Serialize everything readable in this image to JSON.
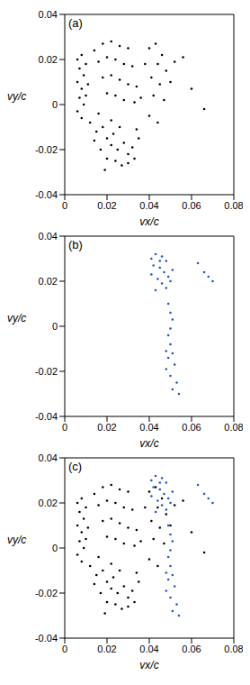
{
  "chart_data": [
    {
      "type": "scatter",
      "title": "(a)",
      "x_label": "vx/c",
      "y_label": "vy/c",
      "xlim": [
        0,
        0.08
      ],
      "xticks": [
        0,
        0.02,
        0.04,
        0.06,
        0.08
      ],
      "ylim": [
        -0.04,
        0.04
      ],
      "yticks": [
        -0.04,
        -0.02,
        0,
        0.02,
        0.04
      ],
      "series": [
        {
          "color": "#000000",
          "marker": "dot",
          "x": [
            0.006,
            0.008,
            0.007,
            0.009,
            0.006,
            0.008,
            0.007,
            0.009,
            0.006,
            0.008,
            0.01,
            0.011,
            0.01,
            0.014,
            0.018,
            0.022,
            0.026,
            0.03,
            0.016,
            0.02,
            0.024,
            0.028,
            0.032,
            0.018,
            0.022,
            0.026,
            0.03,
            0.034,
            0.02,
            0.024,
            0.028,
            0.033,
            0.036,
            0.012,
            0.015,
            0.018,
            0.02,
            0.022,
            0.025,
            0.028,
            0.03,
            0.032,
            0.017,
            0.02,
            0.024,
            0.027,
            0.03,
            0.033,
            0.035,
            0.016,
            0.022,
            0.026,
            0.034,
            0.014,
            0.019,
            0.023,
            0.04,
            0.043,
            0.046,
            0.044,
            0.048,
            0.041,
            0.045,
            0.05,
            0.042,
            0.047,
            0.04,
            0.044,
            0.038,
            0.052,
            0.056,
            0.06,
            0.066
          ],
          "values": [
            0.02,
            0.022,
            0.016,
            0.013,
            0.01,
            0.007,
            0.003,
            0,
            -0.003,
            -0.006,
            0.018,
            0.009,
            0.004,
            0.024,
            0.027,
            0.028,
            0.026,
            0.025,
            0.019,
            0.021,
            0.02,
            0.018,
            0.017,
            0.012,
            0.013,
            0.011,
            0.009,
            0.008,
            0.005,
            0.004,
            0.002,
            0.001,
            0.003,
            -0.008,
            -0.012,
            -0.01,
            -0.015,
            -0.018,
            -0.02,
            -0.017,
            -0.022,
            -0.019,
            -0.02,
            -0.024,
            -0.025,
            -0.027,
            -0.026,
            -0.024,
            -0.015,
            -0.004,
            -0.007,
            -0.01,
            -0.011,
            -0.016,
            -0.029,
            -0.013,
            0.025,
            0.027,
            0.022,
            0.018,
            0.015,
            0.012,
            0.009,
            0.01,
            0.004,
            0.002,
            -0.005,
            -0.008,
            0.018,
            0.019,
            0.021,
            0.007,
            -0.002
          ]
        }
      ]
    },
    {
      "type": "scatter",
      "title": "(b)",
      "x_label": "vx/c",
      "y_label": "vy/c",
      "xlim": [
        0,
        0.08
      ],
      "xticks": [
        0,
        0.02,
        0.04,
        0.06,
        0.08
      ],
      "ylim": [
        -0.04,
        0.04
      ],
      "yticks": [
        -0.04,
        -0.02,
        0,
        0.02,
        0.04
      ],
      "series": [
        {
          "color": "#2255cc",
          "marker": "dot",
          "x": [
            0.041,
            0.043,
            0.046,
            0.048,
            0.042,
            0.045,
            0.047,
            0.049,
            0.041,
            0.044,
            0.046,
            0.048,
            0.043,
            0.05,
            0.051,
            0.045,
            0.049,
            0.05,
            0.051,
            0.05,
            0.049,
            0.05,
            0.048,
            0.049,
            0.051,
            0.052,
            0.048,
            0.05,
            0.053,
            0.051,
            0.054,
            0.066,
            0.068,
            0.07,
            0.063
          ],
          "values": [
            0.03,
            0.032,
            0.031,
            0.029,
            0.027,
            0.026,
            0.024,
            0.022,
            0.023,
            0.021,
            0.019,
            0.017,
            0.016,
            0.02,
            0.025,
            0.029,
            0.01,
            0.006,
            0.003,
            -0.001,
            -0.004,
            -0.008,
            -0.011,
            -0.014,
            -0.012,
            -0.017,
            -0.019,
            -0.022,
            -0.025,
            -0.028,
            -0.03,
            0.024,
            0.022,
            0.02,
            0.028
          ]
        }
      ]
    },
    {
      "type": "scatter",
      "title": "(c)",
      "x_label": "vx/c",
      "y_label": "vy/c",
      "xlim": [
        0,
        0.08
      ],
      "xticks": [
        0,
        0.02,
        0.04,
        0.06,
        0.08
      ],
      "ylim": [
        -0.04,
        0.04
      ],
      "yticks": [
        -0.04,
        -0.02,
        0,
        0.02,
        0.04
      ],
      "series": [
        {
          "color": "#000000",
          "marker": "dot",
          "x": [
            0.006,
            0.008,
            0.007,
            0.009,
            0.006,
            0.008,
            0.007,
            0.009,
            0.006,
            0.008,
            0.01,
            0.011,
            0.01,
            0.014,
            0.018,
            0.022,
            0.026,
            0.03,
            0.016,
            0.02,
            0.024,
            0.028,
            0.032,
            0.018,
            0.022,
            0.026,
            0.03,
            0.034,
            0.02,
            0.024,
            0.028,
            0.033,
            0.036,
            0.012,
            0.015,
            0.018,
            0.02,
            0.022,
            0.025,
            0.028,
            0.03,
            0.032,
            0.017,
            0.02,
            0.024,
            0.027,
            0.03,
            0.033,
            0.035,
            0.016,
            0.022,
            0.026,
            0.034,
            0.014,
            0.019,
            0.023,
            0.04,
            0.043,
            0.046,
            0.044,
            0.048,
            0.041,
            0.045,
            0.05,
            0.042,
            0.047,
            0.04,
            0.044,
            0.038,
            0.052,
            0.056,
            0.06,
            0.066
          ],
          "values": [
            0.02,
            0.022,
            0.016,
            0.013,
            0.01,
            0.007,
            0.003,
            0,
            -0.003,
            -0.006,
            0.018,
            0.009,
            0.004,
            0.024,
            0.027,
            0.028,
            0.026,
            0.025,
            0.019,
            0.021,
            0.02,
            0.018,
            0.017,
            0.012,
            0.013,
            0.011,
            0.009,
            0.008,
            0.005,
            0.004,
            0.002,
            0.001,
            0.003,
            -0.008,
            -0.012,
            -0.01,
            -0.015,
            -0.018,
            -0.02,
            -0.017,
            -0.022,
            -0.019,
            -0.02,
            -0.024,
            -0.025,
            -0.027,
            -0.026,
            -0.024,
            -0.015,
            -0.004,
            -0.007,
            -0.01,
            -0.011,
            -0.016,
            -0.029,
            -0.013,
            0.025,
            0.027,
            0.022,
            0.018,
            0.015,
            0.012,
            0.009,
            0.01,
            0.004,
            0.002,
            -0.005,
            -0.008,
            0.018,
            0.019,
            0.021,
            0.007,
            -0.002
          ]
        },
        {
          "color": "#2255cc",
          "marker": "dot",
          "x": [
            0.041,
            0.043,
            0.046,
            0.048,
            0.042,
            0.045,
            0.047,
            0.049,
            0.041,
            0.044,
            0.046,
            0.048,
            0.043,
            0.05,
            0.051,
            0.045,
            0.049,
            0.05,
            0.051,
            0.05,
            0.049,
            0.05,
            0.048,
            0.049,
            0.051,
            0.052,
            0.048,
            0.05,
            0.053,
            0.051,
            0.054,
            0.066,
            0.068,
            0.07,
            0.063
          ],
          "values": [
            0.03,
            0.032,
            0.031,
            0.029,
            0.027,
            0.026,
            0.024,
            0.022,
            0.023,
            0.021,
            0.019,
            0.017,
            0.016,
            0.02,
            0.025,
            0.029,
            0.01,
            0.006,
            0.003,
            -0.001,
            -0.004,
            -0.008,
            -0.011,
            -0.014,
            -0.012,
            -0.017,
            -0.019,
            -0.022,
            -0.025,
            -0.028,
            -0.03,
            0.024,
            0.022,
            0.02,
            0.028
          ]
        }
      ]
    }
  ]
}
